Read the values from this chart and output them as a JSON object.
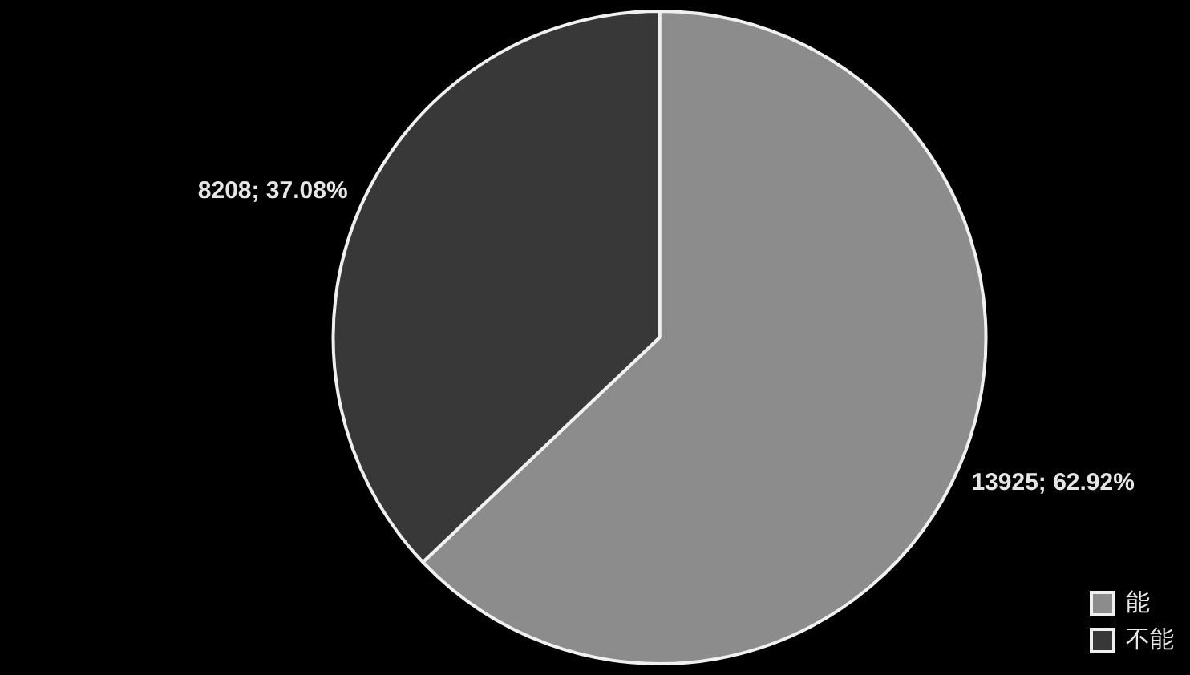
{
  "chart_data": {
    "type": "pie",
    "categories": [
      "能",
      "不能"
    ],
    "values": [
      13925,
      8208
    ],
    "colors": [
      "#8c8c8c",
      "#383838"
    ],
    "value_labels": [
      "13925; 62.92%",
      "8208; 37.08%"
    ],
    "legend": "bottom right"
  }
}
